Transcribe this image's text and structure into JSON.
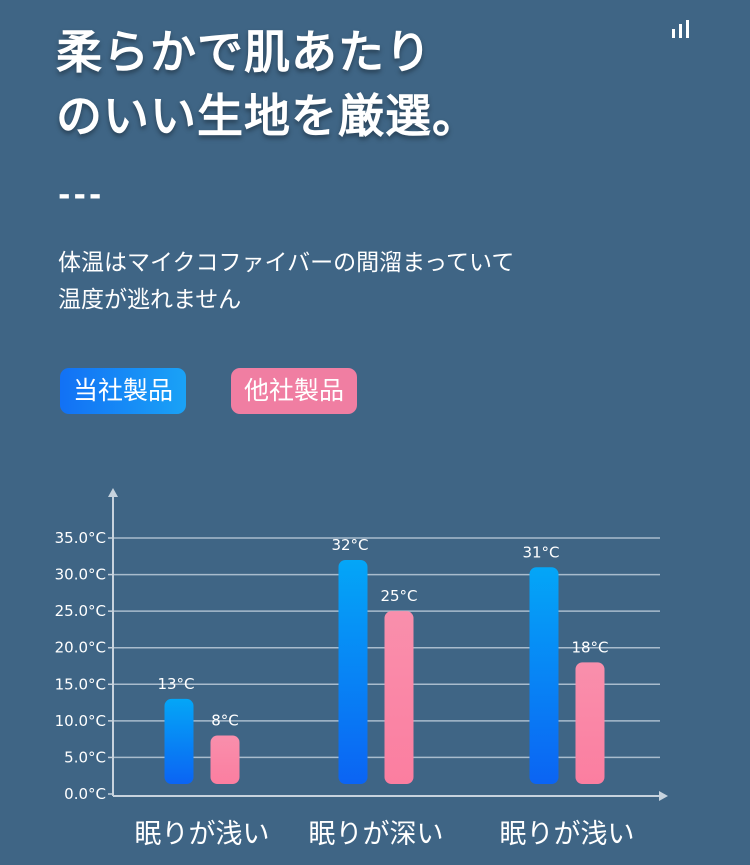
{
  "status_icon": "signal-bars-icon",
  "headline": {
    "line1": "柔らかで肌あたり",
    "line2": "のいい生地を厳選。"
  },
  "divider": "---",
  "description": {
    "line1": "体温はマイクコファイバーの間溜まっていて",
    "line2": "温度が逃れません"
  },
  "legend": {
    "ours": "当社製品",
    "other": "他社製品"
  },
  "colors": {
    "background": "#3f6585",
    "ours_top": "#04a6f7",
    "ours_bottom": "#0b64f3",
    "other_top": "#f98fac",
    "other_bottom": "#fb7ea0"
  },
  "chart_data": {
    "type": "bar",
    "categories": [
      "眠りが浅い",
      "眠りが深い",
      "眠りが浅い"
    ],
    "series": [
      {
        "name": "当社製品",
        "values": [
          13,
          32,
          31
        ],
        "labels": [
          "13°C",
          "32°C",
          "31°C"
        ]
      },
      {
        "name": "他社製品",
        "values": [
          8,
          25,
          18
        ],
        "labels": [
          "8°C",
          "25°C",
          "18°C"
        ]
      }
    ],
    "y_ticks": [
      "0.0°C",
      "5.0°C",
      "10.0°C",
      "15.0°C",
      "20.0°C",
      "25.0°C",
      "30.0°C",
      "35.0°C"
    ],
    "ylim": [
      0,
      35
    ],
    "grid": true,
    "legend_position": "top-left"
  }
}
